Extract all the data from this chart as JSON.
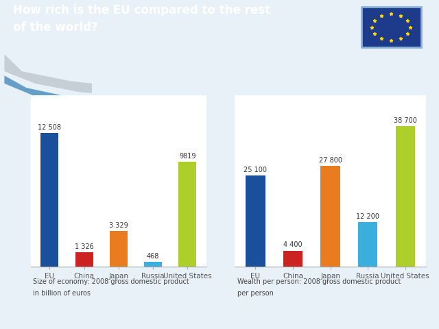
{
  "title_line1": "How rich is the EU compared to the rest",
  "title_line2": "of the world?",
  "header_color": "#1e3a8a",
  "header_border_color": "#2d5bb5",
  "content_bg": "#e8f0f8",
  "chart_bg": "white",
  "chart1": {
    "categories": [
      "EU",
      "China",
      "Japan",
      "Russia",
      "United States"
    ],
    "values": [
      12508,
      1326,
      3329,
      468,
      9819
    ],
    "label_values": [
      "12 508",
      "1 326",
      "3 329",
      "468",
      "9819"
    ],
    "subtitle1": "Size of economy: 2008 gross domestic product",
    "subtitle2": "in billion of euros"
  },
  "chart2": {
    "categories": [
      "EU",
      "China",
      "Japan",
      "Russia",
      "United States"
    ],
    "values": [
      25100,
      4400,
      27800,
      12200,
      38700
    ],
    "label_values": [
      "25 100",
      "4 400",
      "27 800",
      "12 200",
      "38 700"
    ],
    "subtitle1": "Wealth per person: 2008 gross domestic product",
    "subtitle2": "per person"
  },
  "bar_colors": {
    "EU": "#1a4f9c",
    "China": "#cc2222",
    "Japan": "#e87c1e",
    "Russia": "#3aaedc",
    "United States": "#aecf2a"
  },
  "flag_bg": "#1e3a8a",
  "flag_star_color": "#FFD700",
  "flag_border": "#8ab0e0",
  "swoosh_gray": "#c0c8d0",
  "swoosh_blue": "#5090c0",
  "tick_label_color": "#555555",
  "value_label_color": "#333333",
  "subtitle_color": "#444444"
}
